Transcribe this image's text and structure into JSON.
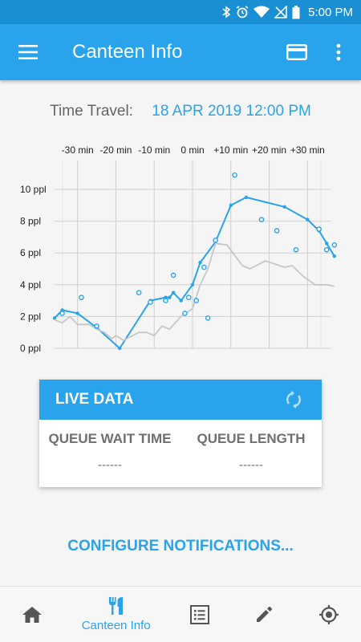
{
  "status_bar": {
    "time": "5:00 PM"
  },
  "app_bar": {
    "title": "Canteen Info"
  },
  "time_travel": {
    "label": "Time Travel:",
    "value": "18 APR 2019 12:00 PM"
  },
  "colors": {
    "primary": "#29a3ec",
    "status_bar": "#1a8fd4",
    "predicted_line": "#c7c7c7",
    "text_gray": "#6f6f6f"
  },
  "chart_data": {
    "type": "line",
    "x_ticks": [
      "-30 min",
      "-20 min",
      "-10 min",
      "0 min",
      "+10 min",
      "+20 min",
      "+30 min"
    ],
    "y_ticks": [
      "0 ppl",
      "2 ppl",
      "4 ppl",
      "6 ppl",
      "8 ppl",
      "10 ppl"
    ],
    "xlim": [
      -36,
      36
    ],
    "ylim": [
      0,
      10
    ],
    "grid": true,
    "series": [
      {
        "style": "line",
        "color": "#29a3ec",
        "points": [
          [
            -36,
            1.9
          ],
          [
            -34,
            2.4
          ],
          [
            -30,
            2.2
          ],
          [
            -25,
            1.3
          ],
          [
            -19,
            0.0
          ],
          [
            -11,
            3.0
          ],
          [
            -7,
            3.2
          ],
          [
            -6,
            3.2
          ],
          [
            -5,
            3.5
          ],
          [
            -3,
            3.0
          ],
          [
            0,
            4.0
          ],
          [
            2,
            5.4
          ],
          [
            6,
            6.7
          ],
          [
            10,
            9.0
          ],
          [
            14,
            9.5
          ],
          [
            24,
            8.9
          ],
          [
            30,
            8.1
          ],
          [
            33,
            7.4
          ],
          [
            35,
            6.6
          ],
          [
            37,
            5.8
          ]
        ]
      },
      {
        "style": "line",
        "color": "#c7c7c7",
        "points": [
          [
            -36,
            1.8
          ],
          [
            -34,
            1.6
          ],
          [
            -32,
            2.0
          ],
          [
            -30,
            1.5
          ],
          [
            -27,
            1.5
          ],
          [
            -25,
            1.2
          ],
          [
            -23,
            1.0
          ],
          [
            -21,
            0.6
          ],
          [
            -20,
            0.8
          ],
          [
            -18,
            0.5
          ],
          [
            -14,
            1.0
          ],
          [
            -12,
            1.0
          ],
          [
            -10,
            0.8
          ],
          [
            -8,
            1.4
          ],
          [
            -6,
            1.2
          ],
          [
            -3,
            2.0
          ],
          [
            0,
            2.5
          ],
          [
            2,
            4.0
          ],
          [
            4,
            5.0
          ],
          [
            6,
            6.6
          ],
          [
            9,
            6.5
          ],
          [
            13,
            5.2
          ],
          [
            15,
            5.0
          ],
          [
            19,
            5.5
          ],
          [
            24,
            5.1
          ],
          [
            26,
            5.2
          ],
          [
            29,
            4.5
          ],
          [
            32,
            4.0
          ],
          [
            35,
            4.0
          ],
          [
            37,
            3.9
          ]
        ]
      },
      {
        "style": "scatter",
        "color": "#29a3ec",
        "points": [
          [
            -34,
            2.2
          ],
          [
            -29,
            3.2
          ],
          [
            -25,
            1.4
          ],
          [
            -14,
            3.5
          ],
          [
            -11,
            2.9
          ],
          [
            -7,
            3.0
          ],
          [
            -5,
            4.6
          ],
          [
            -2,
            2.2
          ],
          [
            -1,
            3.2
          ],
          [
            1,
            3.0
          ],
          [
            3,
            5.1
          ],
          [
            4,
            1.9
          ],
          [
            6,
            6.8
          ],
          [
            11,
            10.9
          ],
          [
            18,
            8.1
          ],
          [
            22,
            7.4
          ],
          [
            27,
            6.2
          ],
          [
            33,
            7.5
          ],
          [
            35,
            6.2
          ],
          [
            37,
            6.5
          ]
        ]
      }
    ]
  },
  "live_data": {
    "title": "LIVE DATA",
    "wait_time_label": "QUEUE WAIT TIME",
    "wait_time_value": "------",
    "queue_length_label": "QUEUE LENGTH",
    "queue_length_value": "------"
  },
  "configure_link": "CONFIGURE NOTIFICATIONS...",
  "bottom_nav": {
    "items": [
      {
        "icon": "home-icon"
      },
      {
        "icon": "cutlery-icon",
        "label": "Canteen Info",
        "active": true
      },
      {
        "icon": "list-icon"
      },
      {
        "icon": "pencil-icon"
      },
      {
        "icon": "location-target-icon"
      }
    ]
  }
}
